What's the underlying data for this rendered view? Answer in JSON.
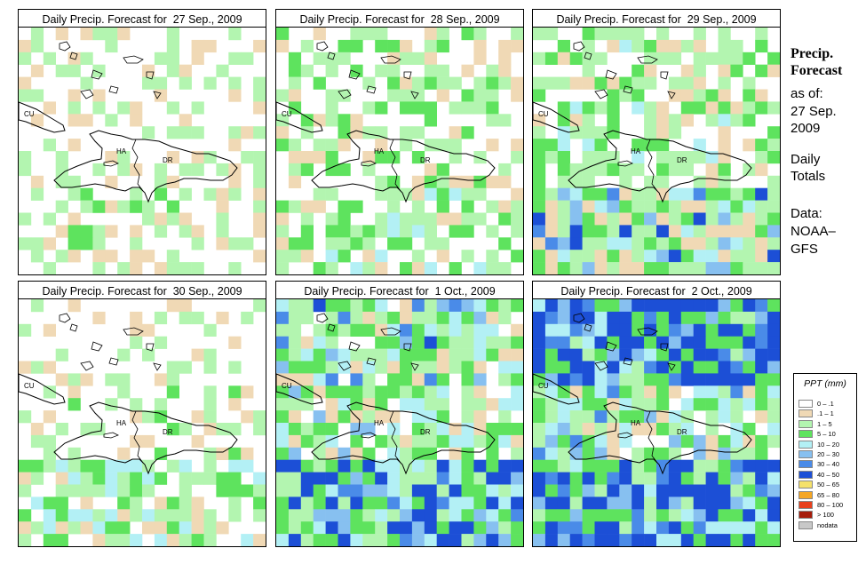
{
  "panels": [
    {
      "title": "Daily Precip. Forecast for  27 Sep., 2009",
      "region_labels": [
        "CU",
        "HA",
        "DR"
      ]
    },
    {
      "title": "Daily Precip. Forecast for  28 Sep., 2009",
      "region_labels": [
        "CU",
        "HA",
        "DR"
      ]
    },
    {
      "title": "Daily Precip. Forecast for  29 Sep., 2009",
      "region_labels": [
        "CU",
        "HA",
        "DR"
      ]
    },
    {
      "title": "Daily Precip. Forecast for  30 Sep., 2009",
      "region_labels": [
        "CU",
        "HA",
        "DR"
      ]
    },
    {
      "title": "Daily Precip. Forecast for  1 Oct., 2009",
      "region_labels": [
        "CU",
        "HA",
        "DR"
      ]
    },
    {
      "title": "Daily Precip. Forecast for  2 Oct., 2009",
      "region_labels": [
        "CU",
        "HA",
        "DR"
      ]
    }
  ],
  "sidebar": {
    "title_line1": "Precip.",
    "title_line2": "Forecast",
    "asof": "as of:",
    "date_line1": "27 Sep.",
    "date_line2": "2009",
    "totals_line1": "Daily",
    "totals_line2": "Totals",
    "data_line1": "Data:",
    "data_line2": "NOAA–",
    "data_line3": "GFS"
  },
  "legend": {
    "title": "PPT (mm)",
    "entries": [
      {
        "label": "0 – .1",
        "color": "#ffffff"
      },
      {
        "label": ".1 – 1",
        "color": "#f0d9b5"
      },
      {
        "label": "1 – 5",
        "color": "#b3f5b0"
      },
      {
        "label": "5 – 10",
        "color": "#5ee35e"
      },
      {
        "label": "10 – 20",
        "color": "#b3f0f5"
      },
      {
        "label": "20 – 30",
        "color": "#87c0f0"
      },
      {
        "label": "30 – 40",
        "color": "#4a8be8"
      },
      {
        "label": "40 – 50",
        "color": "#1c4fd6"
      },
      {
        "label": "50 – 65",
        "color": "#f5e16b"
      },
      {
        "label": "65 – 80",
        "color": "#f5a623"
      },
      {
        "label": "80 – 100",
        "color": "#e8401c"
      },
      {
        "label": "> 100",
        "color": "#a61c0a"
      },
      {
        "label": "nodata",
        "color": "#c8c8c8"
      }
    ]
  }
}
